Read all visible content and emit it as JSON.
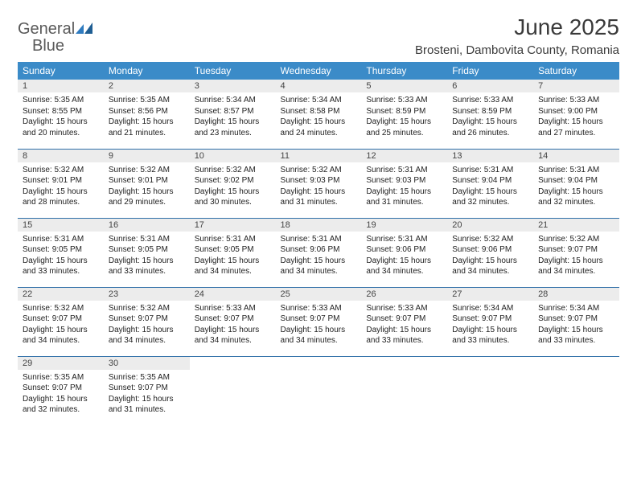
{
  "brand": {
    "word1": "General",
    "word2": "Blue"
  },
  "title": "June 2025",
  "location": "Brosteni, Dambovita County, Romania",
  "colors": {
    "header_bg": "#3b8bc8",
    "header_text": "#ffffff",
    "daynum_bg": "#ececec",
    "rule": "#2f6fa8",
    "brand_gray": "#5a5a5a",
    "brand_blue": "#2f7bbf"
  },
  "weekdays": [
    "Sunday",
    "Monday",
    "Tuesday",
    "Wednesday",
    "Thursday",
    "Friday",
    "Saturday"
  ],
  "weeks": [
    [
      {
        "n": "1",
        "sr": "5:35 AM",
        "ss": "8:55 PM",
        "dl": "15 hours and 20 minutes."
      },
      {
        "n": "2",
        "sr": "5:35 AM",
        "ss": "8:56 PM",
        "dl": "15 hours and 21 minutes."
      },
      {
        "n": "3",
        "sr": "5:34 AM",
        "ss": "8:57 PM",
        "dl": "15 hours and 23 minutes."
      },
      {
        "n": "4",
        "sr": "5:34 AM",
        "ss": "8:58 PM",
        "dl": "15 hours and 24 minutes."
      },
      {
        "n": "5",
        "sr": "5:33 AM",
        "ss": "8:59 PM",
        "dl": "15 hours and 25 minutes."
      },
      {
        "n": "6",
        "sr": "5:33 AM",
        "ss": "8:59 PM",
        "dl": "15 hours and 26 minutes."
      },
      {
        "n": "7",
        "sr": "5:33 AM",
        "ss": "9:00 PM",
        "dl": "15 hours and 27 minutes."
      }
    ],
    [
      {
        "n": "8",
        "sr": "5:32 AM",
        "ss": "9:01 PM",
        "dl": "15 hours and 28 minutes."
      },
      {
        "n": "9",
        "sr": "5:32 AM",
        "ss": "9:01 PM",
        "dl": "15 hours and 29 minutes."
      },
      {
        "n": "10",
        "sr": "5:32 AM",
        "ss": "9:02 PM",
        "dl": "15 hours and 30 minutes."
      },
      {
        "n": "11",
        "sr": "5:32 AM",
        "ss": "9:03 PM",
        "dl": "15 hours and 31 minutes."
      },
      {
        "n": "12",
        "sr": "5:31 AM",
        "ss": "9:03 PM",
        "dl": "15 hours and 31 minutes."
      },
      {
        "n": "13",
        "sr": "5:31 AM",
        "ss": "9:04 PM",
        "dl": "15 hours and 32 minutes."
      },
      {
        "n": "14",
        "sr": "5:31 AM",
        "ss": "9:04 PM",
        "dl": "15 hours and 32 minutes."
      }
    ],
    [
      {
        "n": "15",
        "sr": "5:31 AM",
        "ss": "9:05 PM",
        "dl": "15 hours and 33 minutes."
      },
      {
        "n": "16",
        "sr": "5:31 AM",
        "ss": "9:05 PM",
        "dl": "15 hours and 33 minutes."
      },
      {
        "n": "17",
        "sr": "5:31 AM",
        "ss": "9:05 PM",
        "dl": "15 hours and 34 minutes."
      },
      {
        "n": "18",
        "sr": "5:31 AM",
        "ss": "9:06 PM",
        "dl": "15 hours and 34 minutes."
      },
      {
        "n": "19",
        "sr": "5:31 AM",
        "ss": "9:06 PM",
        "dl": "15 hours and 34 minutes."
      },
      {
        "n": "20",
        "sr": "5:32 AM",
        "ss": "9:06 PM",
        "dl": "15 hours and 34 minutes."
      },
      {
        "n": "21",
        "sr": "5:32 AM",
        "ss": "9:07 PM",
        "dl": "15 hours and 34 minutes."
      }
    ],
    [
      {
        "n": "22",
        "sr": "5:32 AM",
        "ss": "9:07 PM",
        "dl": "15 hours and 34 minutes."
      },
      {
        "n": "23",
        "sr": "5:32 AM",
        "ss": "9:07 PM",
        "dl": "15 hours and 34 minutes."
      },
      {
        "n": "24",
        "sr": "5:33 AM",
        "ss": "9:07 PM",
        "dl": "15 hours and 34 minutes."
      },
      {
        "n": "25",
        "sr": "5:33 AM",
        "ss": "9:07 PM",
        "dl": "15 hours and 34 minutes."
      },
      {
        "n": "26",
        "sr": "5:33 AM",
        "ss": "9:07 PM",
        "dl": "15 hours and 33 minutes."
      },
      {
        "n": "27",
        "sr": "5:34 AM",
        "ss": "9:07 PM",
        "dl": "15 hours and 33 minutes."
      },
      {
        "n": "28",
        "sr": "5:34 AM",
        "ss": "9:07 PM",
        "dl": "15 hours and 33 minutes."
      }
    ],
    [
      {
        "n": "29",
        "sr": "5:35 AM",
        "ss": "9:07 PM",
        "dl": "15 hours and 32 minutes."
      },
      {
        "n": "30",
        "sr": "5:35 AM",
        "ss": "9:07 PM",
        "dl": "15 hours and 31 minutes."
      },
      null,
      null,
      null,
      null,
      null
    ]
  ],
  "labels": {
    "sunrise": "Sunrise: ",
    "sunset": "Sunset: ",
    "daylight": "Daylight: "
  }
}
